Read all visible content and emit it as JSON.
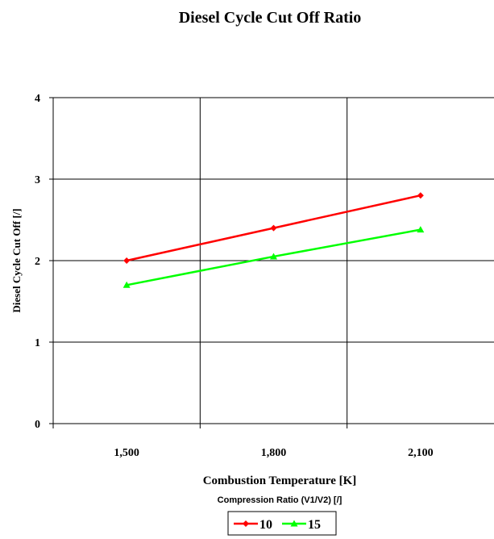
{
  "chart_data": {
    "type": "line",
    "title": "Diesel Cycle Cut Off Ratio",
    "xlabel": "Combustion Temperature [K]",
    "ylabel": "Diesel Cycle Cut Off [/]",
    "legend_title": "Compression Ratio (V1/V2) [/]",
    "legend_position": "bottom",
    "grid": true,
    "x": [
      1500,
      1800,
      2100
    ],
    "x_tick_labels": [
      "1,500",
      "1,800",
      "2,100"
    ],
    "xlim": [
      1350,
      2250
    ],
    "ylim": [
      0,
      4
    ],
    "y_ticks": [
      0,
      1,
      2,
      3,
      4
    ],
    "y_tick_labels": [
      "0",
      "1",
      "2",
      "3",
      "4"
    ],
    "series": [
      {
        "name": "10",
        "values": [
          2.0,
          2.4,
          2.8
        ],
        "color": "#ff0000",
        "marker": "diamond"
      },
      {
        "name": "15",
        "values": [
          1.7,
          2.05,
          2.38
        ],
        "color": "#00ff00",
        "marker": "triangle"
      }
    ]
  }
}
